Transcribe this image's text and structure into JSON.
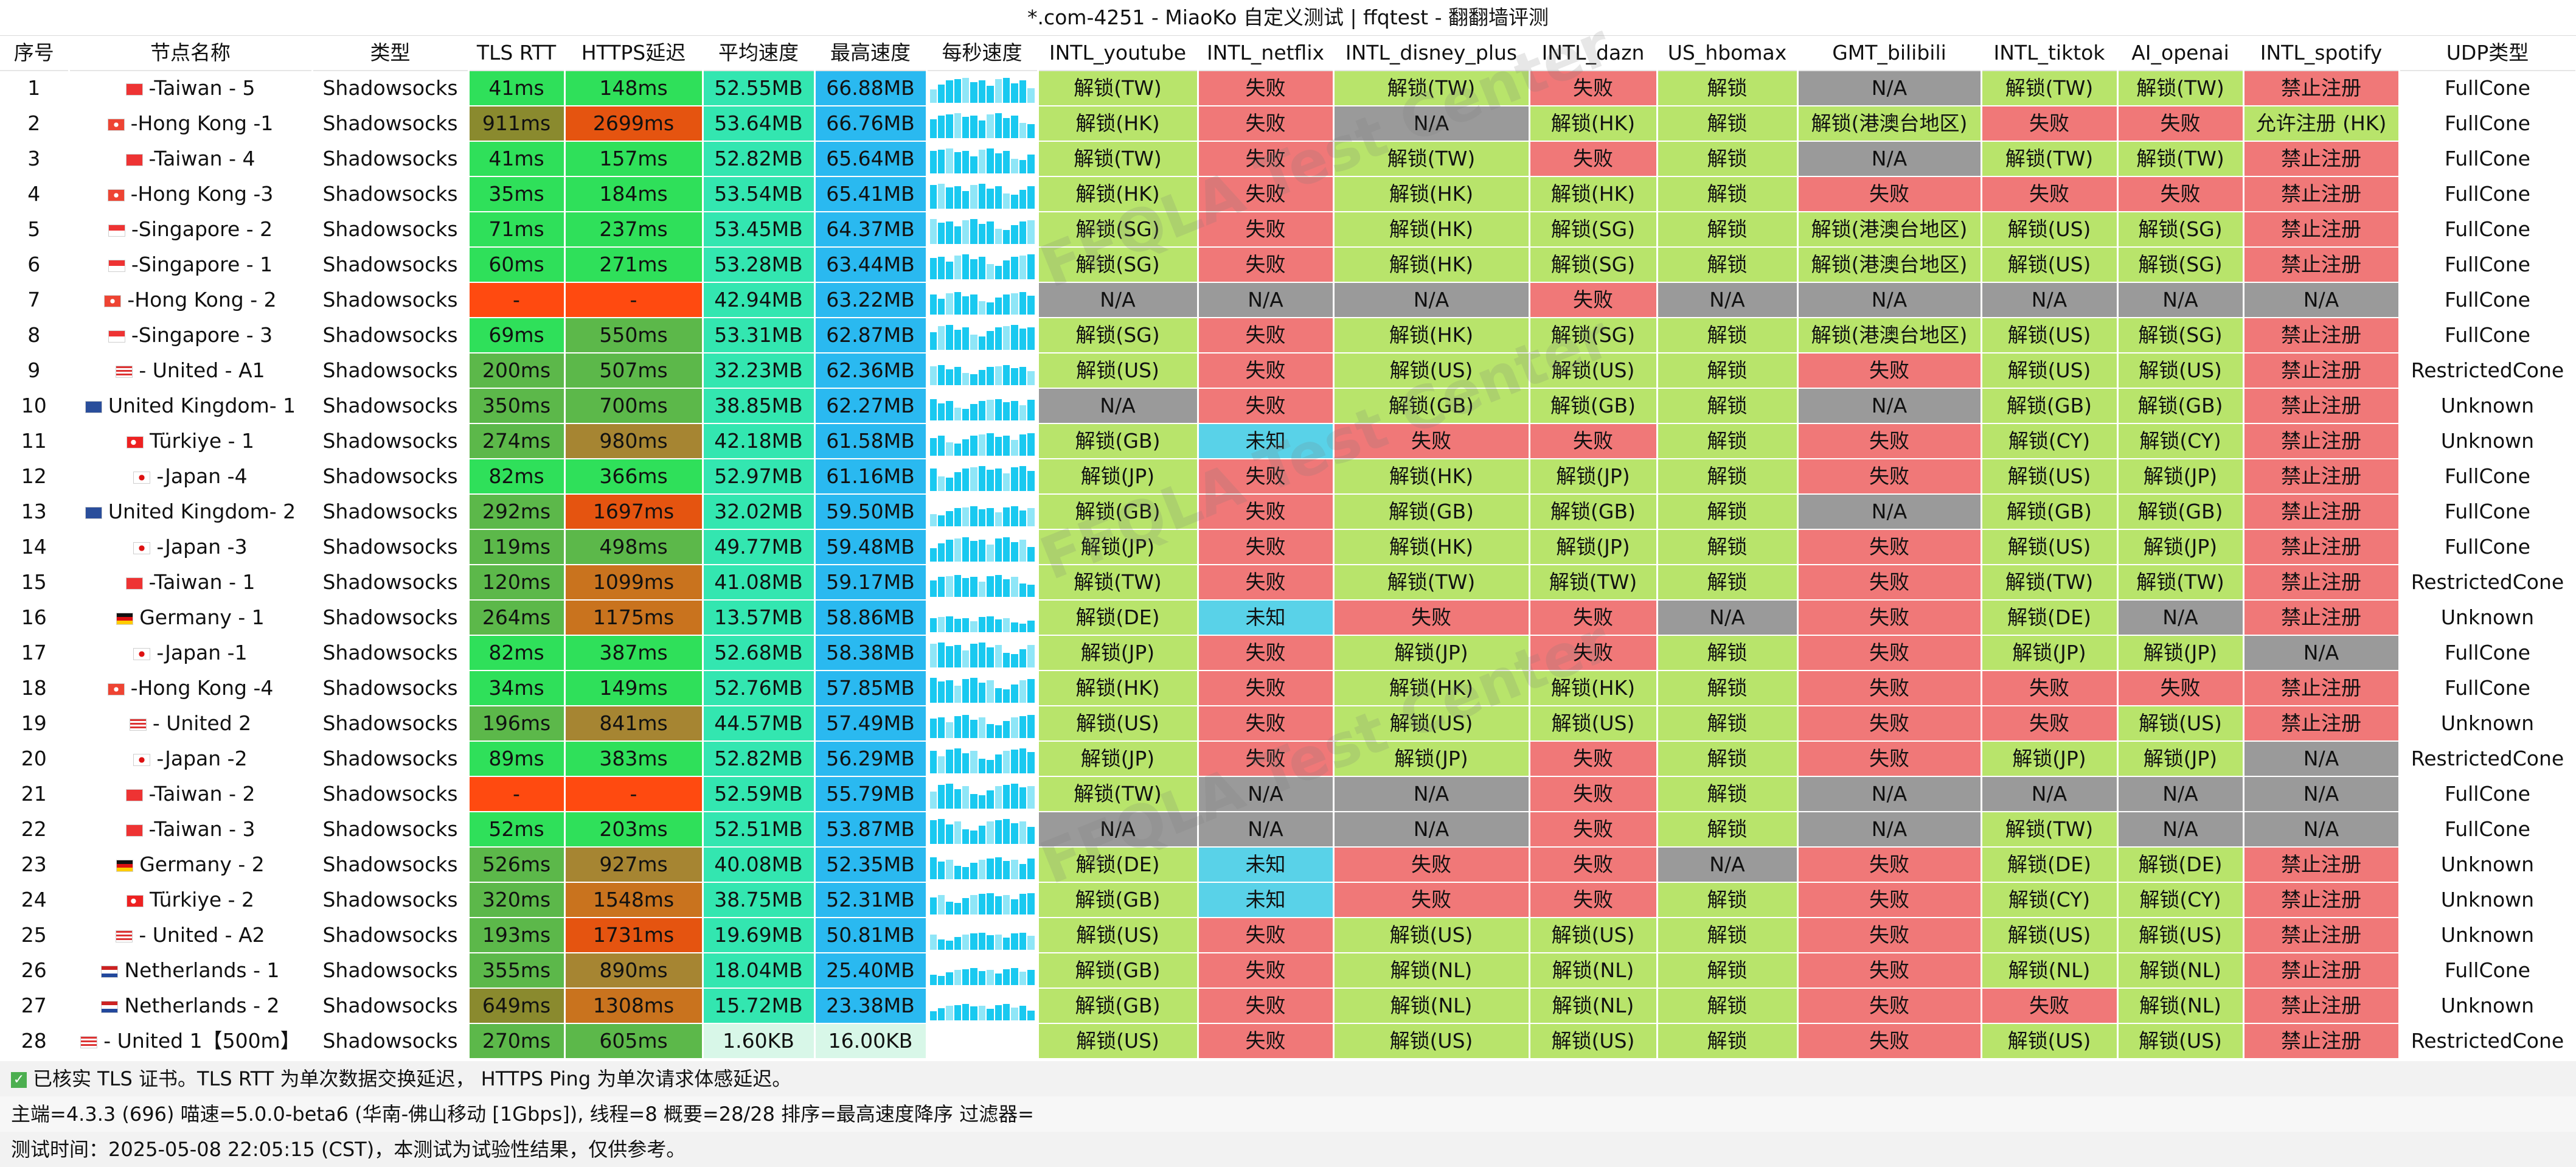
{
  "title": "*.com-4251 - MiaoKo 自定义测试 | ffqtest - 翻翻墙评测",
  "watermark": "FFQLA Test Center",
  "headers": [
    "序号",
    "节点名称",
    "类型",
    "TLS RTT",
    "HTTPS延迟",
    "平均速度",
    "最高速度",
    "每秒速度",
    "INTL_youtube",
    "INTL_netflix",
    "INTL_disney_plus",
    "INTL_dazn",
    "US_hbomax",
    "GMT_bilibili",
    "INTL_tiktok",
    "AI_openai",
    "INTL_spotify",
    "UDP类型"
  ],
  "palette": {
    "green": "#b8e46b",
    "red": "#f07878",
    "gray": "#9a9a9a",
    "cyan": "#59d2e8",
    "rtt_fast": "#2fe05a",
    "rtt_mid": "#5cb84a",
    "rtt_slow": "#8a8a2e",
    "rtt_err": "#ff4a10",
    "https_fast": "#2fe05a",
    "https_mid": "#5cb84a",
    "https_slow": "#a68532",
    "https_bad": "#c9731e",
    "https_worst": "#e55410",
    "avg": "#33e6b0",
    "max": "#2ab9f0",
    "slow_speed": "#d8f7e8"
  },
  "rows": [
    {
      "id": "1",
      "flag": "tw",
      "name": "-Taiwan - 5",
      "type": "Shadowsocks",
      "rtt": "41ms",
      "https": "148ms",
      "avg": "52.55MB",
      "max": "66.88MB",
      "youtube": "解锁(TW)",
      "netflix": "失败",
      "disney": "解锁(TW)",
      "dazn": "失败",
      "hbomax": "解锁",
      "bilibili": "N/A",
      "tiktok": "解锁(TW)",
      "openai": "解锁(TW)",
      "spotify": "禁止注册",
      "udp": "FullCone"
    },
    {
      "id": "2",
      "flag": "hk",
      "name": "-Hong Kong -1",
      "type": "Shadowsocks",
      "rtt": "911ms",
      "https": "2699ms",
      "avg": "53.64MB",
      "max": "66.76MB",
      "youtube": "解锁(HK)",
      "netflix": "失败",
      "disney": "N/A",
      "dazn": "解锁(HK)",
      "hbomax": "解锁",
      "bilibili": "解锁(港澳台地区)",
      "tiktok": "失败",
      "openai": "失败",
      "spotify": "允许注册 (HK)",
      "udp": "FullCone"
    },
    {
      "id": "3",
      "flag": "tw",
      "name": "-Taiwan - 4",
      "type": "Shadowsocks",
      "rtt": "41ms",
      "https": "157ms",
      "avg": "52.82MB",
      "max": "65.64MB",
      "youtube": "解锁(TW)",
      "netflix": "失败",
      "disney": "解锁(TW)",
      "dazn": "失败",
      "hbomax": "解锁",
      "bilibili": "N/A",
      "tiktok": "解锁(TW)",
      "openai": "解锁(TW)",
      "spotify": "禁止注册",
      "udp": "FullCone"
    },
    {
      "id": "4",
      "flag": "hk",
      "name": "-Hong Kong -3",
      "type": "Shadowsocks",
      "rtt": "35ms",
      "https": "184ms",
      "avg": "53.54MB",
      "max": "65.41MB",
      "youtube": "解锁(HK)",
      "netflix": "失败",
      "disney": "解锁(HK)",
      "dazn": "解锁(HK)",
      "hbomax": "解锁",
      "bilibili": "失败",
      "tiktok": "失败",
      "openai": "失败",
      "spotify": "禁止注册",
      "udp": "FullCone"
    },
    {
      "id": "5",
      "flag": "sg",
      "name": "-Singapore - 2",
      "type": "Shadowsocks",
      "rtt": "71ms",
      "https": "237ms",
      "avg": "53.45MB",
      "max": "64.37MB",
      "youtube": "解锁(SG)",
      "netflix": "失败",
      "disney": "解锁(HK)",
      "dazn": "解锁(SG)",
      "hbomax": "解锁",
      "bilibili": "解锁(港澳台地区)",
      "tiktok": "解锁(US)",
      "openai": "解锁(SG)",
      "spotify": "禁止注册",
      "udp": "FullCone"
    },
    {
      "id": "6",
      "flag": "sg",
      "name": "-Singapore - 1",
      "type": "Shadowsocks",
      "rtt": "60ms",
      "https": "271ms",
      "avg": "53.28MB",
      "max": "63.44MB",
      "youtube": "解锁(SG)",
      "netflix": "失败",
      "disney": "解锁(HK)",
      "dazn": "解锁(SG)",
      "hbomax": "解锁",
      "bilibili": "解锁(港澳台地区)",
      "tiktok": "解锁(US)",
      "openai": "解锁(SG)",
      "spotify": "禁止注册",
      "udp": "FullCone"
    },
    {
      "id": "7",
      "flag": "hk",
      "name": "-Hong Kong - 2",
      "type": "Shadowsocks",
      "rtt": "-",
      "https": "-",
      "avg": "42.94MB",
      "max": "63.22MB",
      "youtube": "N/A",
      "netflix": "N/A",
      "disney": "N/A",
      "dazn": "失败",
      "hbomax": "N/A",
      "bilibili": "N/A",
      "tiktok": "N/A",
      "openai": "N/A",
      "spotify": "N/A",
      "udp": "FullCone"
    },
    {
      "id": "8",
      "flag": "sg",
      "name": "-Singapore - 3",
      "type": "Shadowsocks",
      "rtt": "69ms",
      "https": "550ms",
      "avg": "53.31MB",
      "max": "62.87MB",
      "youtube": "解锁(SG)",
      "netflix": "失败",
      "disney": "解锁(HK)",
      "dazn": "解锁(SG)",
      "hbomax": "解锁",
      "bilibili": "解锁(港澳台地区)",
      "tiktok": "解锁(US)",
      "openai": "解锁(SG)",
      "spotify": "禁止注册",
      "udp": "FullCone"
    },
    {
      "id": "9",
      "flag": "us",
      "name": "- United - A1",
      "type": "Shadowsocks",
      "rtt": "200ms",
      "https": "507ms",
      "avg": "32.23MB",
      "max": "62.36MB",
      "youtube": "解锁(US)",
      "netflix": "失败",
      "disney": "解锁(US)",
      "dazn": "解锁(US)",
      "hbomax": "解锁",
      "bilibili": "失败",
      "tiktok": "解锁(US)",
      "openai": "解锁(US)",
      "spotify": "禁止注册",
      "udp": "RestrictedCone"
    },
    {
      "id": "10",
      "flag": "gb",
      "name": "United Kingdom- 1",
      "type": "Shadowsocks",
      "rtt": "350ms",
      "https": "700ms",
      "avg": "38.85MB",
      "max": "62.27MB",
      "youtube": "N/A",
      "netflix": "失败",
      "disney": "解锁(GB)",
      "dazn": "解锁(GB)",
      "hbomax": "解锁",
      "bilibili": "N/A",
      "tiktok": "解锁(GB)",
      "openai": "解锁(GB)",
      "spotify": "禁止注册",
      "udp": "Unknown"
    },
    {
      "id": "11",
      "flag": "tr",
      "name": "Türkiye - 1",
      "type": "Shadowsocks",
      "rtt": "274ms",
      "https": "980ms",
      "avg": "42.18MB",
      "max": "61.58MB",
      "youtube": "解锁(GB)",
      "netflix": "未知",
      "disney": "失败",
      "dazn": "失败",
      "hbomax": "解锁",
      "bilibili": "失败",
      "tiktok": "解锁(CY)",
      "openai": "解锁(CY)",
      "spotify": "禁止注册",
      "udp": "Unknown"
    },
    {
      "id": "12",
      "flag": "jp",
      "name": "-Japan -4",
      "type": "Shadowsocks",
      "rtt": "82ms",
      "https": "366ms",
      "avg": "52.97MB",
      "max": "61.16MB",
      "youtube": "解锁(JP)",
      "netflix": "失败",
      "disney": "解锁(HK)",
      "dazn": "解锁(JP)",
      "hbomax": "解锁",
      "bilibili": "失败",
      "tiktok": "解锁(US)",
      "openai": "解锁(JP)",
      "spotify": "禁止注册",
      "udp": "FullCone"
    },
    {
      "id": "13",
      "flag": "gb",
      "name": "United Kingdom- 2",
      "type": "Shadowsocks",
      "rtt": "292ms",
      "https": "1697ms",
      "avg": "32.02MB",
      "max": "59.50MB",
      "youtube": "解锁(GB)",
      "netflix": "失败",
      "disney": "解锁(GB)",
      "dazn": "解锁(GB)",
      "hbomax": "解锁",
      "bilibili": "N/A",
      "tiktok": "解锁(GB)",
      "openai": "解锁(GB)",
      "spotify": "禁止注册",
      "udp": "FullCone"
    },
    {
      "id": "14",
      "flag": "jp",
      "name": "-Japan -3",
      "type": "Shadowsocks",
      "rtt": "119ms",
      "https": "498ms",
      "avg": "49.77MB",
      "max": "59.48MB",
      "youtube": "解锁(JP)",
      "netflix": "失败",
      "disney": "解锁(HK)",
      "dazn": "解锁(JP)",
      "hbomax": "解锁",
      "bilibili": "失败",
      "tiktok": "解锁(US)",
      "openai": "解锁(JP)",
      "spotify": "禁止注册",
      "udp": "FullCone"
    },
    {
      "id": "15",
      "flag": "tw",
      "name": "-Taiwan - 1",
      "type": "Shadowsocks",
      "rtt": "120ms",
      "https": "1099ms",
      "avg": "41.08MB",
      "max": "59.17MB",
      "youtube": "解锁(TW)",
      "netflix": "失败",
      "disney": "解锁(TW)",
      "dazn": "解锁(TW)",
      "hbomax": "解锁",
      "bilibili": "失败",
      "tiktok": "解锁(TW)",
      "openai": "解锁(TW)",
      "spotify": "禁止注册",
      "udp": "RestrictedCone"
    },
    {
      "id": "16",
      "flag": "de",
      "name": "Germany - 1",
      "type": "Shadowsocks",
      "rtt": "264ms",
      "https": "1175ms",
      "avg": "13.57MB",
      "max": "58.86MB",
      "youtube": "解锁(DE)",
      "netflix": "未知",
      "disney": "失败",
      "dazn": "失败",
      "hbomax": "N/A",
      "bilibili": "失败",
      "tiktok": "解锁(DE)",
      "openai": "N/A",
      "spotify": "禁止注册",
      "udp": "Unknown"
    },
    {
      "id": "17",
      "flag": "jp",
      "name": "-Japan -1",
      "type": "Shadowsocks",
      "rtt": "82ms",
      "https": "387ms",
      "avg": "52.68MB",
      "max": "58.38MB",
      "youtube": "解锁(JP)",
      "netflix": "失败",
      "disney": "解锁(JP)",
      "dazn": "失败",
      "hbomax": "解锁",
      "bilibili": "失败",
      "tiktok": "解锁(JP)",
      "openai": "解锁(JP)",
      "spotify": "N/A",
      "udp": "FullCone"
    },
    {
      "id": "18",
      "flag": "hk",
      "name": "-Hong Kong -4",
      "type": "Shadowsocks",
      "rtt": "34ms",
      "https": "149ms",
      "avg": "52.76MB",
      "max": "57.85MB",
      "youtube": "解锁(HK)",
      "netflix": "失败",
      "disney": "解锁(HK)",
      "dazn": "解锁(HK)",
      "hbomax": "解锁",
      "bilibili": "失败",
      "tiktok": "失败",
      "openai": "失败",
      "spotify": "禁止注册",
      "udp": "FullCone"
    },
    {
      "id": "19",
      "flag": "us",
      "name": "- United 2",
      "type": "Shadowsocks",
      "rtt": "196ms",
      "https": "841ms",
      "avg": "44.57MB",
      "max": "57.49MB",
      "youtube": "解锁(US)",
      "netflix": "失败",
      "disney": "解锁(US)",
      "dazn": "解锁(US)",
      "hbomax": "解锁",
      "bilibili": "失败",
      "tiktok": "失败",
      "openai": "解锁(US)",
      "spotify": "禁止注册",
      "udp": "Unknown"
    },
    {
      "id": "20",
      "flag": "jp",
      "name": "-Japan -2",
      "type": "Shadowsocks",
      "rtt": "89ms",
      "https": "383ms",
      "avg": "52.82MB",
      "max": "56.29MB",
      "youtube": "解锁(JP)",
      "netflix": "失败",
      "disney": "解锁(JP)",
      "dazn": "失败",
      "hbomax": "解锁",
      "bilibili": "失败",
      "tiktok": "解锁(JP)",
      "openai": "解锁(JP)",
      "spotify": "N/A",
      "udp": "RestrictedCone"
    },
    {
      "id": "21",
      "flag": "tw",
      "name": "-Taiwan - 2",
      "type": "Shadowsocks",
      "rtt": "-",
      "https": "-",
      "avg": "52.59MB",
      "max": "55.79MB",
      "youtube": "解锁(TW)",
      "netflix": "N/A",
      "disney": "N/A",
      "dazn": "失败",
      "hbomax": "解锁",
      "bilibili": "N/A",
      "tiktok": "N/A",
      "openai": "N/A",
      "spotify": "N/A",
      "udp": "FullCone"
    },
    {
      "id": "22",
      "flag": "tw",
      "name": "-Taiwan - 3",
      "type": "Shadowsocks",
      "rtt": "52ms",
      "https": "203ms",
      "avg": "52.51MB",
      "max": "53.87MB",
      "youtube": "N/A",
      "netflix": "N/A",
      "disney": "N/A",
      "dazn": "失败",
      "hbomax": "解锁",
      "bilibili": "N/A",
      "tiktok": "解锁(TW)",
      "openai": "N/A",
      "spotify": "N/A",
      "udp": "FullCone"
    },
    {
      "id": "23",
      "flag": "de",
      "name": "Germany - 2",
      "type": "Shadowsocks",
      "rtt": "526ms",
      "https": "927ms",
      "avg": "40.08MB",
      "max": "52.35MB",
      "youtube": "解锁(DE)",
      "netflix": "未知",
      "disney": "失败",
      "dazn": "失败",
      "hbomax": "N/A",
      "bilibili": "失败",
      "tiktok": "解锁(DE)",
      "openai": "解锁(DE)",
      "spotify": "禁止注册",
      "udp": "Unknown"
    },
    {
      "id": "24",
      "flag": "tr",
      "name": "Türkiye - 2",
      "type": "Shadowsocks",
      "rtt": "320ms",
      "https": "1548ms",
      "avg": "38.75MB",
      "max": "52.31MB",
      "youtube": "解锁(GB)",
      "netflix": "未知",
      "disney": "失败",
      "dazn": "失败",
      "hbomax": "解锁",
      "bilibili": "失败",
      "tiktok": "解锁(CY)",
      "openai": "解锁(CY)",
      "spotify": "禁止注册",
      "udp": "Unknown"
    },
    {
      "id": "25",
      "flag": "us",
      "name": "- United - A2",
      "type": "Shadowsocks",
      "rtt": "193ms",
      "https": "1731ms",
      "avg": "19.69MB",
      "max": "50.81MB",
      "youtube": "解锁(US)",
      "netflix": "失败",
      "disney": "解锁(US)",
      "dazn": "解锁(US)",
      "hbomax": "解锁",
      "bilibili": "失败",
      "tiktok": "解锁(US)",
      "openai": "解锁(US)",
      "spotify": "禁止注册",
      "udp": "Unknown"
    },
    {
      "id": "26",
      "flag": "nl",
      "name": "Netherlands - 1",
      "type": "Shadowsocks",
      "rtt": "355ms",
      "https": "890ms",
      "avg": "18.04MB",
      "max": "25.40MB",
      "youtube": "解锁(GB)",
      "netflix": "失败",
      "disney": "解锁(NL)",
      "dazn": "解锁(NL)",
      "hbomax": "解锁",
      "bilibili": "失败",
      "tiktok": "解锁(NL)",
      "openai": "解锁(NL)",
      "spotify": "禁止注册",
      "udp": "FullCone"
    },
    {
      "id": "27",
      "flag": "nl",
      "name": "Netherlands - 2",
      "type": "Shadowsocks",
      "rtt": "649ms",
      "https": "1308ms",
      "avg": "15.72MB",
      "max": "23.38MB",
      "youtube": "解锁(GB)",
      "netflix": "失败",
      "disney": "解锁(NL)",
      "dazn": "解锁(NL)",
      "hbomax": "解锁",
      "bilibili": "失败",
      "tiktok": "失败",
      "openai": "解锁(NL)",
      "spotify": "禁止注册",
      "udp": "Unknown"
    },
    {
      "id": "28",
      "flag": "us",
      "name": "- United 1【500m】",
      "type": "Shadowsocks",
      "rtt": "270ms",
      "https": "605ms",
      "avg": "1.60KB",
      "max": "16.00KB",
      "youtube": "解锁(US)",
      "netflix": "失败",
      "disney": "解锁(US)",
      "dazn": "解锁(US)",
      "hbomax": "解锁",
      "bilibili": "失败",
      "tiktok": "解锁(US)",
      "openai": "解锁(US)",
      "spotify": "禁止注册",
      "udp": "RestrictedCone"
    }
  ],
  "footer": {
    "line1": "已核实 TLS 证书。TLS RTT 为单次数据交换延迟， HTTPS Ping 为单次请求体感延迟。",
    "line2": "主端=4.3.3 (696) 喵速=5.0.0-beta6 (华南-佛山移动 [1Gbps]), 线程=8 概要=28/28 排序=最高速度降序 过滤器=",
    "line3": "测试时间：2025-05-08 22:05:15 (CST)，本测试为试验性结果，仅供参考。"
  }
}
